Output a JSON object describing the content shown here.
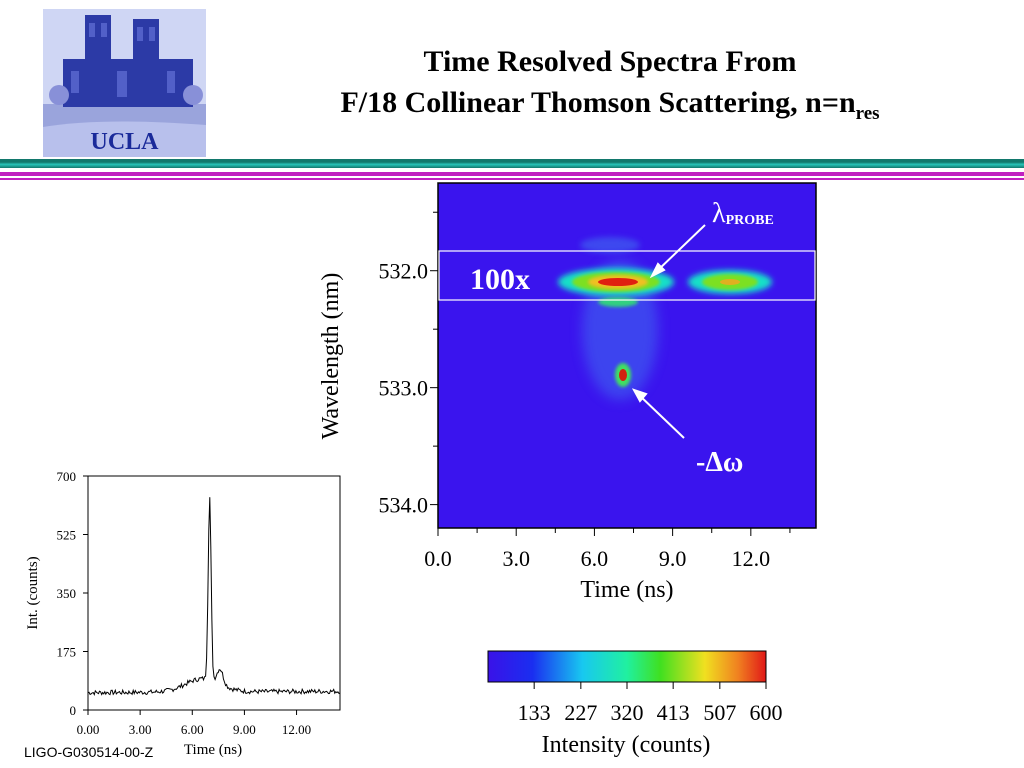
{
  "header": {
    "logo_text": "UCLA",
    "title_line1": "Time Resolved Spectra From",
    "title_line2_main": "F/18 Collinear Thomson Scattering, n=n",
    "title_line2_sub": "res"
  },
  "footer": {
    "doc_id": "LIGO-G030514-00-Z"
  },
  "colors": {
    "teal_rule": "#12786c",
    "magenta_rule": "#c020c0",
    "logo_blue": "#1a2a9a"
  },
  "chart_data": [
    {
      "type": "heatmap",
      "xlabel": "Time (ns)",
      "ylabel": "Wavelength (nm)",
      "xlim": [
        0.0,
        14.5
      ],
      "ylim": [
        531.25,
        534.2
      ],
      "x_ticks": [
        "0.0",
        "3.0",
        "6.0",
        "9.0",
        "12.0"
      ],
      "x_tick_values": [
        0.0,
        3.0,
        6.0,
        9.0,
        12.0
      ],
      "y_ticks": [
        "532.0",
        "533.0",
        "534.0"
      ],
      "y_tick_values": [
        532.0,
        533.0,
        534.0
      ],
      "annotations": {
        "box_label": "100x",
        "probe_label": "λ",
        "probe_sub": "PROBE",
        "shift_label": "-Δω"
      },
      "features": [
        {
          "name": "probe",
          "time_ns": 7.0,
          "wavelength_nm": 532.1,
          "level": "max"
        },
        {
          "name": "probe-2",
          "time_ns": 11.0,
          "wavelength_nm": 532.1,
          "level": "medium"
        },
        {
          "name": "shifted",
          "time_ns": 7.0,
          "wavelength_nm": 532.9,
          "level": "max"
        }
      ],
      "colorbar": {
        "label": "Intensity (counts)",
        "ticks": [
          "133",
          "227",
          "320",
          "413",
          "507",
          "600"
        ],
        "tick_values": [
          133,
          227,
          320,
          413,
          507,
          600
        ],
        "range": [
          40,
          600
        ]
      }
    },
    {
      "type": "line",
      "xlabel": "Time (ns)",
      "ylabel": "Int. (counts)",
      "xlim": [
        0.0,
        14.5
      ],
      "ylim": [
        0,
        700
      ],
      "x_ticks": [
        "0.00",
        "3.00",
        "6.00",
        "9.00",
        "12.00"
      ],
      "x_tick_values": [
        0,
        3,
        6,
        9,
        12
      ],
      "y_ticks": [
        "0",
        "175",
        "350",
        "525",
        "700"
      ],
      "y_tick_values": [
        0,
        175,
        350,
        525,
        700
      ],
      "peak": {
        "x": 7.0,
        "y": 610
      },
      "baseline": 52
    }
  ]
}
